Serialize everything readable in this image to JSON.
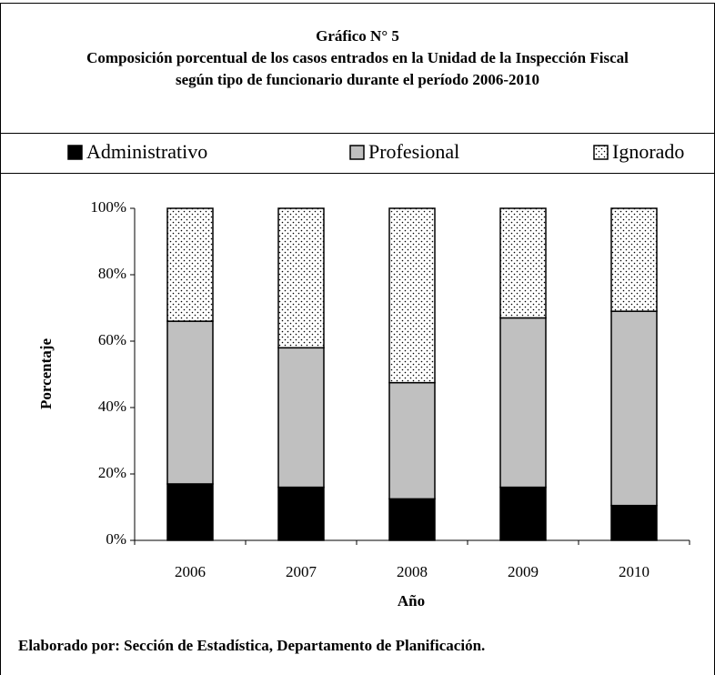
{
  "chart_data": {
    "type": "stacked_bar",
    "title": "Gráfico N° 5",
    "subtitle": "Composición porcentual de los casos entrados en la Unidad de la Inspección Fiscal según tipo de funcionario durante el período 2006-2010",
    "categories": [
      "2006",
      "2007",
      "2008",
      "2009",
      "2010"
    ],
    "series": [
      {
        "name": "Administrativo",
        "color": "#000000",
        "values": [
          17,
          16,
          12.5,
          16,
          10.5
        ]
      },
      {
        "name": "Profesional",
        "color": "#c0c0c0",
        "values": [
          49,
          42,
          35,
          51,
          58.5
        ]
      },
      {
        "name": "Ignorado",
        "color": "#ffffff",
        "pattern": "dots",
        "values": [
          34,
          42,
          52.5,
          33,
          31
        ]
      }
    ],
    "ylim": [
      0,
      100
    ],
    "yticks": [
      {
        "value": 0,
        "label": "0%"
      },
      {
        "value": 20,
        "label": "20%"
      },
      {
        "value": 40,
        "label": "40%"
      },
      {
        "value": 60,
        "label": "60%"
      },
      {
        "value": 80,
        "label": "80%"
      },
      {
        "value": 100,
        "label": "100%"
      }
    ],
    "ylabel": "Porcentaje",
    "xlabel": "Año",
    "legend": "top",
    "grid": false,
    "source": "Elaborado por: Sección de Estadística, Departamento de Planificación."
  }
}
